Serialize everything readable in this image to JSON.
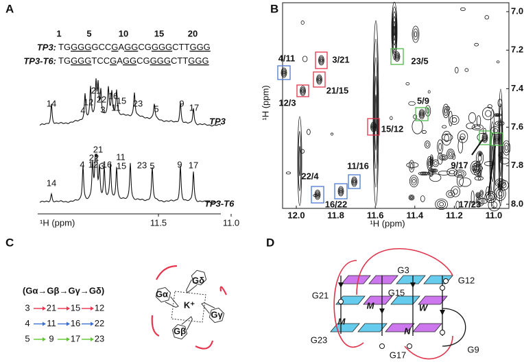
{
  "panel_a": {
    "label": "A",
    "numbering": [
      "1",
      "5",
      "10",
      "15",
      "20"
    ],
    "sequences": [
      {
        "name": "TP3:",
        "segments": [
          {
            "text": "TG",
            "underline": false
          },
          {
            "text": "GGG",
            "underline": true
          },
          {
            "text": "GCC",
            "underline": false
          },
          {
            "text": "G",
            "underline": true
          },
          {
            "text": "A",
            "underline": false
          },
          {
            "text": "GG",
            "underline": true
          },
          {
            "text": "CG",
            "underline": false
          },
          {
            "text": "GGG",
            "underline": true
          },
          {
            "text": "CTT",
            "underline": false
          },
          {
            "text": "GGG",
            "underline": true
          }
        ]
      },
      {
        "name": "TP3-T6:",
        "segments": [
          {
            "text": "TG",
            "underline": false
          },
          {
            "text": "GGG",
            "underline": true
          },
          {
            "text": "TCC",
            "underline": false
          },
          {
            "text": "G",
            "underline": true
          },
          {
            "text": "A",
            "underline": false
          },
          {
            "text": "GG",
            "underline": true
          },
          {
            "text": "CG",
            "underline": false
          },
          {
            "text": "GGG",
            "underline": true
          },
          {
            "text": "CTT",
            "underline": false
          },
          {
            "text": "GGG",
            "underline": true
          }
        ]
      }
    ],
    "spectra": [
      {
        "name": "TP3",
        "peaks": [
          "14",
          "4",
          "12",
          "21",
          "22",
          "3",
          "16",
          "11",
          "15",
          "23",
          "5",
          "9",
          "17"
        ]
      },
      {
        "name": "TP3-T6",
        "peaks": [
          "14",
          "4",
          "12",
          "21",
          "22",
          "3",
          "16",
          "11",
          "15",
          "23",
          "5",
          "9",
          "17"
        ]
      }
    ],
    "x_label": "¹H (ppm)",
    "xticks": [
      11.5,
      {
        "value": 11,
        "label": "11.0"
      }
    ]
  },
  "panel_b": {
    "label": "B",
    "x_label": "¹H (ppm)",
    "y_label": "¹H (ppm)",
    "xticks": [
      {
        "value": 12,
        "label": "12.0"
      },
      11.8,
      11.6,
      11.4,
      11.2,
      {
        "value": 11,
        "label": "11.0"
      }
    ],
    "yticks": [
      {
        "value": 7,
        "label": "7.0"
      },
      7.2,
      7.4,
      7.6,
      7.8,
      {
        "value": 8,
        "label": "8.0"
      }
    ],
    "cross_peaks": [
      {
        "label": "4/11",
        "color": "#4a78d0"
      },
      {
        "label": "3/21",
        "color": "#e0334a"
      },
      {
        "label": "23/5",
        "color": "#4db84a"
      },
      {
        "label": "12/3",
        "color": "#e0334a"
      },
      {
        "label": "21/15",
        "color": "#e0334a"
      },
      {
        "label": "5/9",
        "color": "#4db84a"
      },
      {
        "label": "15/12",
        "color": "#e0334a"
      },
      {
        "label": "9/17",
        "color": "#4db84a"
      },
      {
        "label": "22/4",
        "color": "#4a78d0"
      },
      {
        "label": "11/16",
        "color": "#4a78d0"
      },
      {
        "label": "16/22",
        "color": "#4a78d0"
      },
      {
        "label": "17/23"
      }
    ]
  },
  "panel_c": {
    "label": "C",
    "scheme": "(Gα→Gβ→Gγ→Gδ)",
    "rows": [
      {
        "color": "#e8344d",
        "items": [
          "3",
          "21",
          "15",
          "12"
        ]
      },
      {
        "color": "#3a6fd6",
        "items": [
          "4",
          "11",
          "16",
          "22"
        ]
      },
      {
        "color": "#5fc42f",
        "items": [
          "5",
          "9",
          "17",
          "23"
        ]
      }
    ],
    "quartet_labels": [
      "Gα",
      "Gβ",
      "Gγ",
      "Gδ",
      "K⁺"
    ]
  },
  "panel_d": {
    "label": "D",
    "labels": [
      "G21",
      "G3",
      "G12",
      "G15",
      "M",
      "W",
      "M",
      "N",
      "G23",
      "G17",
      "G9"
    ]
  }
}
